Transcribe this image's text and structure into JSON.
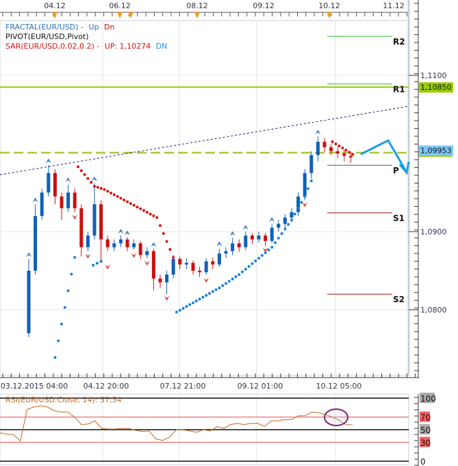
{
  "legend": {
    "fractal": "FRACTAL(EUR/USD) -",
    "fractal_up": "Up",
    "fractal_dn": "Dn",
    "pivot": "PIVOT(EUR/USD,Pivot)",
    "sar": "SAR(EUR/USD,0.02,0.2) -",
    "sar_up": "UP: 1,10274",
    "sar_dn": "DN"
  },
  "colors": {
    "up": "#1060b8",
    "down": "#cc1010",
    "sar_up": "#1a80e0",
    "sar_dn": "#dd1010",
    "r1": "#99cc00",
    "trend": "#1a1a80",
    "arrow": "#1a9ee0",
    "rsi": "#c8641e",
    "rsi_level": "#e05050"
  },
  "chart_data": [
    {
      "type": "candlestick",
      "top_axis_labels": [
        "04.12",
        "06.12",
        "08.12",
        "09.12",
        "10.12",
        "11.12"
      ],
      "bottom_axis_labels": [
        "03.12.2015 04:00",
        "04.12 20:00",
        "07.12 21:00",
        "09.12 01:00",
        "10.12 05:00"
      ],
      "y_ticks": [
        "1,1100",
        "1,0900",
        "1,0800"
      ],
      "ylim": [
        1.0735,
        1.12
      ],
      "price_badges": [
        {
          "label": "1,10850",
          "value": 1.1085,
          "color": "#99cc00"
        },
        {
          "label": "1,09953",
          "value": 1.09953,
          "color": "#7cc8f0"
        }
      ],
      "candles": [
        [
          1.077,
          1.0865,
          1.0765,
          1.085
        ],
        [
          1.085,
          1.0935,
          1.0845,
          1.092
        ],
        [
          1.092,
          1.0955,
          1.0915,
          1.095
        ],
        [
          1.095,
          1.0985,
          1.0945,
          1.0975
        ],
        [
          1.0975,
          1.098,
          1.0935,
          1.0945
        ],
        [
          1.0945,
          1.095,
          1.0915,
          1.093
        ],
        [
          1.093,
          1.096,
          1.0925,
          1.095
        ],
        [
          1.095,
          1.0955,
          1.0925,
          1.093
        ],
        [
          1.093,
          1.0935,
          1.0868,
          1.088
        ],
        [
          1.088,
          1.09,
          1.0875,
          1.0895
        ],
        [
          1.0895,
          1.0962,
          1.089,
          1.0935
        ],
        [
          1.0935,
          1.094,
          1.086,
          1.089
        ],
        [
          1.089,
          1.0895,
          1.0875,
          1.088
        ],
        [
          1.088,
          1.089,
          1.0875,
          1.0885
        ],
        [
          1.0885,
          1.0895,
          1.088,
          1.089
        ],
        [
          1.089,
          1.0893,
          1.0875,
          1.088
        ],
        [
          1.088,
          1.089,
          1.0877,
          1.0885
        ],
        [
          1.0885,
          1.0888,
          1.0865,
          1.087
        ],
        [
          1.087,
          1.088,
          1.0866,
          1.0875
        ],
        [
          1.0875,
          1.0878,
          1.0825,
          1.084
        ],
        [
          1.084,
          1.0845,
          1.0828,
          1.0835
        ],
        [
          1.0835,
          1.085,
          1.082,
          1.0845
        ],
        [
          1.0845,
          1.087,
          1.084,
          1.0865
        ],
        [
          1.0865,
          1.0868,
          1.0852,
          1.0858
        ],
        [
          1.0858,
          1.0866,
          1.0852,
          1.086
        ],
        [
          1.086,
          1.0863,
          1.0845,
          1.085
        ],
        [
          1.085,
          1.0855,
          1.0842,
          1.0848
        ],
        [
          1.0848,
          1.0866,
          1.0845,
          1.0862
        ],
        [
          1.0862,
          1.0867,
          1.0852,
          1.0858
        ],
        [
          1.0858,
          1.0878,
          1.0855,
          1.0872
        ],
        [
          1.0872,
          1.088,
          1.0866,
          1.0875
        ],
        [
          1.0875,
          1.0892,
          1.087,
          1.0885
        ],
        [
          1.0885,
          1.089,
          1.0874,
          1.088
        ],
        [
          1.088,
          1.09,
          1.0876,
          1.0895
        ],
        [
          1.0895,
          1.0898,
          1.0884,
          1.089
        ],
        [
          1.089,
          1.09,
          1.0886,
          1.0895
        ],
        [
          1.0895,
          1.0898,
          1.0882,
          1.0888
        ],
        [
          1.0888,
          1.091,
          1.0885,
          1.0905
        ],
        [
          1.0905,
          1.0915,
          1.09,
          1.091
        ],
        [
          1.091,
          1.0922,
          1.0905,
          1.0918
        ],
        [
          1.0918,
          1.093,
          1.0912,
          1.0925
        ],
        [
          1.0925,
          1.095,
          1.092,
          1.0945
        ],
        [
          1.0945,
          1.098,
          1.094,
          1.0975
        ],
        [
          1.0975,
          1.1003,
          1.0968,
          1.0998
        ],
        [
          1.0998,
          1.1022,
          1.099,
          1.1015
        ],
        [
          1.1015,
          1.102,
          1.1002,
          1.1008
        ],
        [
          1.1008,
          1.1012,
          1.0998,
          1.1003
        ],
        [
          1.1003,
          1.1008,
          1.0994,
          1.1
        ],
        [
          1.1,
          1.1004,
          1.099,
          1.0997
        ],
        [
          1.0997,
          1.1,
          1.0988,
          1.0995
        ]
      ],
      "fractals_up": [
        [
          0,
          1.087
        ],
        [
          1,
          1.094
        ],
        [
          3,
          1.099
        ],
        [
          6,
          1.0966
        ],
        [
          10,
          1.0967
        ],
        [
          14,
          1.09
        ],
        [
          15,
          1.0898
        ],
        [
          19,
          1.0883
        ],
        [
          29,
          1.0884
        ],
        [
          31,
          1.0897
        ],
        [
          33,
          1.0905
        ],
        [
          37,
          1.0915
        ],
        [
          44,
          1.1027
        ]
      ],
      "fractals_down": [
        [
          7,
          1.0919
        ],
        [
          9,
          1.0869
        ],
        [
          12,
          1.0855
        ],
        [
          16,
          1.087
        ],
        [
          18,
          1.086
        ],
        [
          21,
          1.0815
        ],
        [
          27,
          1.0838
        ],
        [
          36,
          1.0877
        ],
        [
          42,
          1.0935
        ]
      ],
      "sar_segments": [
        {
          "dir": "down",
          "points": [
            [
              7.5,
              1.0983
            ],
            [
              10,
              1.0958
            ],
            [
              11.5,
              1.0954
            ],
            [
              19.5,
              1.0918
            ],
            [
              22,
              1.0867
            ]
          ]
        },
        {
          "dir": "up",
          "points": [
            [
              4,
              1.0739
            ],
            [
              7,
              1.0867
            ]
          ]
        },
        {
          "dir": "up",
          "points": [
            [
              9.8,
              1.0857
            ],
            [
              11,
              1.0862
            ]
          ]
        },
        {
          "dir": "up",
          "points": [
            [
              22.5,
              1.0797
            ],
            [
              29,
              1.0828
            ],
            [
              32,
              1.0845
            ],
            [
              37,
              1.088
            ],
            [
              40,
              1.0915
            ],
            [
              42,
              1.0945
            ],
            [
              43,
              1.0965
            ]
          ]
        },
        {
          "dir": "down",
          "points": [
            [
              46.2,
              1.1015
            ],
            [
              49.3,
              1.0999
            ]
          ]
        }
      ],
      "pivot_levels": [
        {
          "label": "R2",
          "value": 1.115,
          "color": "#33bb33"
        },
        {
          "label": "R1",
          "value": 1.1089,
          "color": "#33bb33"
        },
        {
          "label": "P",
          "value": 1.0985,
          "color": "#555555"
        },
        {
          "label": "S1",
          "value": 1.0924,
          "color": "#aa1111"
        },
        {
          "label": "S2",
          "value": 1.082,
          "color": "#aa1111"
        }
      ],
      "horizontal_lines": [
        {
          "value": 1.1085,
          "style": "solid"
        },
        {
          "value": 1.1001,
          "style": "dashed"
        }
      ]
    },
    {
      "type": "line",
      "title": "RSI(EUR/USD.Close, 14): 57,54",
      "ylim": [
        0,
        100
      ],
      "y_ticks": [
        "100",
        "70",
        "50",
        "30",
        "0"
      ],
      "levels": [
        100,
        70,
        50,
        30,
        0
      ],
      "values": [
        45,
        43,
        42,
        32,
        82,
        86,
        88,
        86,
        80,
        78,
        78,
        70,
        58,
        59,
        64,
        52,
        51,
        51,
        52,
        52,
        49,
        47,
        48,
        35,
        33,
        38,
        50,
        50,
        48,
        46,
        50,
        48,
        55,
        52,
        58,
        60,
        58,
        60,
        60,
        55,
        64,
        64,
        66,
        66,
        72,
        72,
        78,
        77,
        74,
        70,
        65,
        58,
        57.54
      ]
    }
  ]
}
